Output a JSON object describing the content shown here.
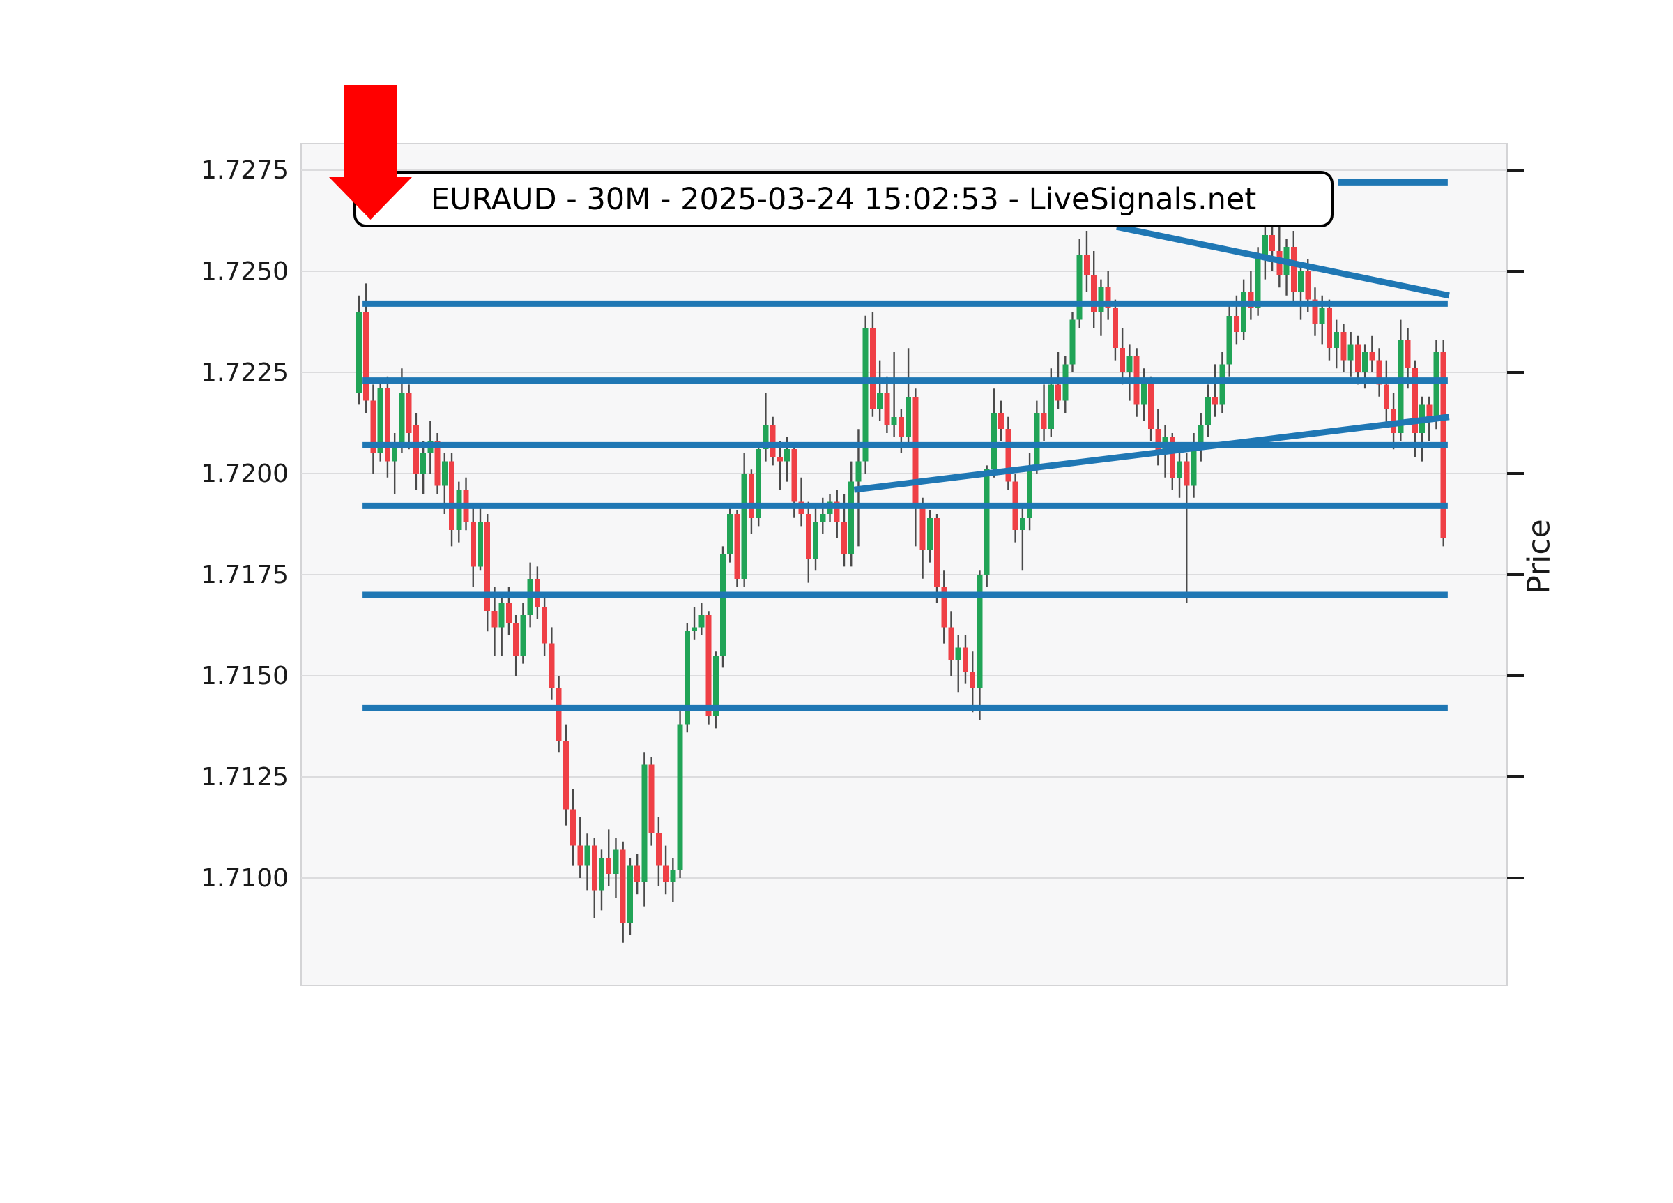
{
  "chart_data": {
    "type": "candlestick",
    "title": "EURAUD - 30M - 2025-03-24 15:02:53 - LiveSignals.net",
    "symbol": "EURAUD",
    "timeframe": "30M",
    "timestamp": "2025-03-24 15:02:53",
    "source": "LiveSignals.net",
    "ylabel": "Price",
    "xlabel": "",
    "x_tick_labels_visible": false,
    "grid": true,
    "ylim": [
      1.707345,
      1.728155
    ],
    "yticks": [
      1.7275,
      1.725,
      1.7225,
      1.72,
      1.7175,
      1.715,
      1.7125,
      1.71
    ],
    "gridline_prices": [
      1.7275,
      1.725,
      1.7225,
      1.72,
      1.7175,
      1.715,
      1.7125,
      1.71
    ],
    "ohlc": [
      [
        1.722,
        1.7244,
        1.7217,
        1.724
      ],
      [
        1.724,
        1.7247,
        1.7215,
        1.7218
      ],
      [
        1.7218,
        1.7222,
        1.72,
        1.7205
      ],
      [
        1.7205,
        1.7223,
        1.7203,
        1.7221
      ],
      [
        1.7221,
        1.7224,
        1.7199,
        1.7203
      ],
      [
        1.7203,
        1.721,
        1.7195,
        1.7207
      ],
      [
        1.7207,
        1.7226,
        1.7205,
        1.722
      ],
      [
        1.722,
        1.7222,
        1.7206,
        1.721
      ],
      [
        1.7212,
        1.7215,
        1.7196,
        1.72
      ],
      [
        1.72,
        1.7208,
        1.7195,
        1.7205
      ],
      [
        1.7205,
        1.7213,
        1.72,
        1.7208
      ],
      [
        1.7208,
        1.721,
        1.7195,
        1.7197
      ],
      [
        1.7197,
        1.7205,
        1.719,
        1.7203
      ],
      [
        1.7203,
        1.7205,
        1.7182,
        1.7186
      ],
      [
        1.7186,
        1.7198,
        1.7183,
        1.7196
      ],
      [
        1.7196,
        1.7199,
        1.7186,
        1.7188
      ],
      [
        1.7188,
        1.7192,
        1.7172,
        1.7177
      ],
      [
        1.7177,
        1.7192,
        1.7176,
        1.7188
      ],
      [
        1.7188,
        1.719,
        1.7161,
        1.7166
      ],
      [
        1.7166,
        1.7172,
        1.7155,
        1.7162
      ],
      [
        1.7162,
        1.717,
        1.7155,
        1.7168
      ],
      [
        1.7168,
        1.7172,
        1.716,
        1.7163
      ],
      [
        1.7163,
        1.7165,
        1.715,
        1.7155
      ],
      [
        1.7155,
        1.7168,
        1.7153,
        1.7165
      ],
      [
        1.7165,
        1.7178,
        1.7162,
        1.7174
      ],
      [
        1.7174,
        1.7177,
        1.7164,
        1.7167
      ],
      [
        1.7167,
        1.717,
        1.7155,
        1.7158
      ],
      [
        1.7158,
        1.7162,
        1.7144,
        1.7147
      ],
      [
        1.7147,
        1.715,
        1.7131,
        1.7134
      ],
      [
        1.7134,
        1.7138,
        1.7113,
        1.7117
      ],
      [
        1.7117,
        1.7122,
        1.7103,
        1.7108
      ],
      [
        1.7108,
        1.7115,
        1.71,
        1.7103
      ],
      [
        1.7103,
        1.7111,
        1.7097,
        1.7108
      ],
      [
        1.7108,
        1.711,
        1.709,
        1.7097
      ],
      [
        1.7097,
        1.7107,
        1.7092,
        1.7105
      ],
      [
        1.7105,
        1.7112,
        1.7098,
        1.7101
      ],
      [
        1.7101,
        1.711,
        1.7095,
        1.7107
      ],
      [
        1.7107,
        1.7109,
        1.7084,
        1.7089
      ],
      [
        1.7089,
        1.7105,
        1.7086,
        1.7103
      ],
      [
        1.7103,
        1.7106,
        1.7096,
        1.7099
      ],
      [
        1.7099,
        1.7131,
        1.7093,
        1.7128
      ],
      [
        1.7128,
        1.713,
        1.7108,
        1.7111
      ],
      [
        1.7111,
        1.7115,
        1.7098,
        1.7103
      ],
      [
        1.7103,
        1.7108,
        1.7096,
        1.7099
      ],
      [
        1.7099,
        1.7105,
        1.7094,
        1.7102
      ],
      [
        1.7102,
        1.7142,
        1.71,
        1.7138
      ],
      [
        1.7138,
        1.7163,
        1.7136,
        1.7161
      ],
      [
        1.7161,
        1.7167,
        1.7159,
        1.7162
      ],
      [
        1.7162,
        1.7168,
        1.716,
        1.7165
      ],
      [
        1.7165,
        1.7166,
        1.7138,
        1.714
      ],
      [
        1.714,
        1.7156,
        1.7137,
        1.7155
      ],
      [
        1.7155,
        1.7182,
        1.7152,
        1.718
      ],
      [
        1.718,
        1.7192,
        1.7178,
        1.719
      ],
      [
        1.719,
        1.7191,
        1.7172,
        1.7174
      ],
      [
        1.7174,
        1.7205,
        1.7172,
        1.72
      ],
      [
        1.72,
        1.7201,
        1.7185,
        1.7189
      ],
      [
        1.7189,
        1.7207,
        1.7187,
        1.7206
      ],
      [
        1.7206,
        1.722,
        1.7203,
        1.7212
      ],
      [
        1.7212,
        1.7214,
        1.7202,
        1.7204
      ],
      [
        1.7204,
        1.7208,
        1.7196,
        1.7203
      ],
      [
        1.7203,
        1.7209,
        1.7198,
        1.7206
      ],
      [
        1.7206,
        1.7207,
        1.7189,
        1.7193
      ],
      [
        1.7193,
        1.7199,
        1.7187,
        1.719
      ],
      [
        1.719,
        1.7193,
        1.7173,
        1.7179
      ],
      [
        1.7179,
        1.7192,
        1.7176,
        1.7188
      ],
      [
        1.7188,
        1.7194,
        1.7185,
        1.719
      ],
      [
        1.719,
        1.7195,
        1.7188,
        1.7193
      ],
      [
        1.7193,
        1.7196,
        1.7184,
        1.7188
      ],
      [
        1.7188,
        1.7195,
        1.7177,
        1.718
      ],
      [
        1.718,
        1.7203,
        1.7177,
        1.7198
      ],
      [
        1.7198,
        1.7211,
        1.7182,
        1.7203
      ],
      [
        1.7203,
        1.7239,
        1.72,
        1.7236
      ],
      [
        1.7236,
        1.724,
        1.7214,
        1.7216
      ],
      [
        1.7216,
        1.7228,
        1.7213,
        1.722
      ],
      [
        1.722,
        1.7224,
        1.721,
        1.7212
      ],
      [
        1.7212,
        1.723,
        1.7209,
        1.7214
      ],
      [
        1.7214,
        1.7216,
        1.7205,
        1.7209
      ],
      [
        1.7209,
        1.7231,
        1.7207,
        1.7219
      ],
      [
        1.7219,
        1.7221,
        1.7182,
        1.7192
      ],
      [
        1.7192,
        1.7194,
        1.7174,
        1.7181
      ],
      [
        1.7181,
        1.7191,
        1.7178,
        1.7189
      ],
      [
        1.7189,
        1.719,
        1.7168,
        1.7172
      ],
      [
        1.7172,
        1.7176,
        1.7158,
        1.7162
      ],
      [
        1.7162,
        1.7166,
        1.715,
        1.7154
      ],
      [
        1.7154,
        1.716,
        1.7146,
        1.7157
      ],
      [
        1.7157,
        1.716,
        1.7148,
        1.7151
      ],
      [
        1.7151,
        1.7156,
        1.7141,
        1.7147
      ],
      [
        1.7147,
        1.7176,
        1.7139,
        1.7175
      ],
      [
        1.7175,
        1.7202,
        1.7172,
        1.7201
      ],
      [
        1.7201,
        1.7221,
        1.7199,
        1.7215
      ],
      [
        1.7215,
        1.7218,
        1.7208,
        1.7211
      ],
      [
        1.7211,
        1.7214,
        1.7196,
        1.7198
      ],
      [
        1.7198,
        1.72,
        1.7183,
        1.7186
      ],
      [
        1.7186,
        1.7192,
        1.7176,
        1.7189
      ],
      [
        1.7189,
        1.7205,
        1.7186,
        1.7202
      ],
      [
        1.7202,
        1.7218,
        1.72,
        1.7215
      ],
      [
        1.7215,
        1.7222,
        1.7208,
        1.7211
      ],
      [
        1.7211,
        1.7226,
        1.7209,
        1.7222
      ],
      [
        1.7222,
        1.723,
        1.7216,
        1.7218
      ],
      [
        1.7218,
        1.7229,
        1.7215,
        1.7227
      ],
      [
        1.7227,
        1.724,
        1.7225,
        1.7238
      ],
      [
        1.7238,
        1.7258,
        1.7236,
        1.7254
      ],
      [
        1.7254,
        1.726,
        1.7245,
        1.7249
      ],
      [
        1.7249,
        1.7255,
        1.7236,
        1.724
      ],
      [
        1.724,
        1.7248,
        1.7234,
        1.7246
      ],
      [
        1.7246,
        1.725,
        1.7238,
        1.7241
      ],
      [
        1.7241,
        1.7243,
        1.7228,
        1.7231
      ],
      [
        1.7231,
        1.7236,
        1.7222,
        1.7225
      ],
      [
        1.7225,
        1.7232,
        1.7218,
        1.7229
      ],
      [
        1.7229,
        1.7231,
        1.7214,
        1.7217
      ],
      [
        1.7217,
        1.7226,
        1.7213,
        1.7223
      ],
      [
        1.7223,
        1.7224,
        1.7208,
        1.7211
      ],
      [
        1.7211,
        1.7216,
        1.7202,
        1.7205
      ],
      [
        1.7205,
        1.7212,
        1.7199,
        1.7209
      ],
      [
        1.7209,
        1.721,
        1.7196,
        1.7199
      ],
      [
        1.7199,
        1.7206,
        1.7194,
        1.7203
      ],
      [
        1.7203,
        1.7205,
        1.7168,
        1.7197
      ],
      [
        1.7197,
        1.721,
        1.7194,
        1.7207
      ],
      [
        1.7207,
        1.7215,
        1.7203,
        1.7212
      ],
      [
        1.7212,
        1.7222,
        1.7209,
        1.7219
      ],
      [
        1.7219,
        1.7227,
        1.7214,
        1.7217
      ],
      [
        1.7217,
        1.723,
        1.7215,
        1.7227
      ],
      [
        1.7227,
        1.7242,
        1.7224,
        1.7239
      ],
      [
        1.7239,
        1.7244,
        1.7232,
        1.7235
      ],
      [
        1.7235,
        1.7248,
        1.7233,
        1.7245
      ],
      [
        1.7245,
        1.725,
        1.7238,
        1.7241
      ],
      [
        1.7241,
        1.7256,
        1.7239,
        1.7253
      ],
      [
        1.7253,
        1.7262,
        1.7248,
        1.7259
      ],
      [
        1.7259,
        1.7263,
        1.725,
        1.7255
      ],
      [
        1.7255,
        1.7261,
        1.7246,
        1.7249
      ],
      [
        1.7249,
        1.7258,
        1.7244,
        1.7256
      ],
      [
        1.7256,
        1.726,
        1.7242,
        1.7245
      ],
      [
        1.7245,
        1.7252,
        1.7238,
        1.725
      ],
      [
        1.725,
        1.7253,
        1.724,
        1.7243
      ],
      [
        1.7243,
        1.7246,
        1.7234,
        1.7237
      ],
      [
        1.7237,
        1.7244,
        1.7232,
        1.7241
      ],
      [
        1.7241,
        1.7243,
        1.7228,
        1.7231
      ],
      [
        1.7231,
        1.7238,
        1.7226,
        1.7235
      ],
      [
        1.7235,
        1.7237,
        1.7225,
        1.7228
      ],
      [
        1.7228,
        1.7235,
        1.7224,
        1.7232
      ],
      [
        1.7232,
        1.7234,
        1.7222,
        1.7225
      ],
      [
        1.7225,
        1.7232,
        1.7221,
        1.723
      ],
      [
        1.723,
        1.7234,
        1.7225,
        1.7228
      ],
      [
        1.7228,
        1.7231,
        1.7219,
        1.7222
      ],
      [
        1.7222,
        1.7228,
        1.7212,
        1.7216
      ],
      [
        1.7216,
        1.722,
        1.7206,
        1.721
      ],
      [
        1.721,
        1.7238,
        1.7208,
        1.7233
      ],
      [
        1.7233,
        1.7236,
        1.7221,
        1.7226
      ],
      [
        1.7226,
        1.7228,
        1.7204,
        1.721
      ],
      [
        1.721,
        1.7219,
        1.7203,
        1.7217
      ],
      [
        1.7217,
        1.7219,
        1.7208,
        1.7213
      ],
      [
        1.7213,
        1.7233,
        1.7211,
        1.723
      ],
      [
        1.723,
        1.7233,
        1.7182,
        1.7184
      ]
    ],
    "levels": [
      {
        "price": 1.7272,
        "from_index": 137.2,
        "to_index": 152.6
      },
      {
        "price": 1.7242,
        "from_index": 0.5,
        "to_index": 152.6
      },
      {
        "price": 1.7223,
        "from_index": 0.5,
        "to_index": 152.6
      },
      {
        "price": 1.7207,
        "from_index": 0.5,
        "to_index": 152.6
      },
      {
        "price": 1.7192,
        "from_index": 0.5,
        "to_index": 152.6
      },
      {
        "price": 1.717,
        "from_index": 0.5,
        "to_index": 152.6
      },
      {
        "price": 1.7142,
        "from_index": 0.5,
        "to_index": 152.6
      }
    ],
    "trendlines": [
      {
        "from": {
          "index": 106.2,
          "price": 1.7261
        },
        "to": {
          "index": 152.8,
          "price": 1.7244
        }
      },
      {
        "from": {
          "index": 69.4,
          "price": 1.7196
        },
        "to": {
          "index": 152.8,
          "price": 1.7214
        }
      }
    ],
    "annotations": {
      "down_arrow": {
        "direction": "down",
        "color": "#FF0000"
      }
    }
  },
  "colors": {
    "up": "#21A457",
    "down": "#EF4046",
    "wick": "#4A4A4A",
    "level": "#1F77B4",
    "trendline": "#1F77B4",
    "plot_bg": "#F7F7F8",
    "grid": "#DCDCDE",
    "spine": "#D4D4D6",
    "figure_bg": "#FFFFFF",
    "text": "#1A1A1A",
    "tick": "#1A1A1A",
    "arrow": "#FF0000"
  }
}
